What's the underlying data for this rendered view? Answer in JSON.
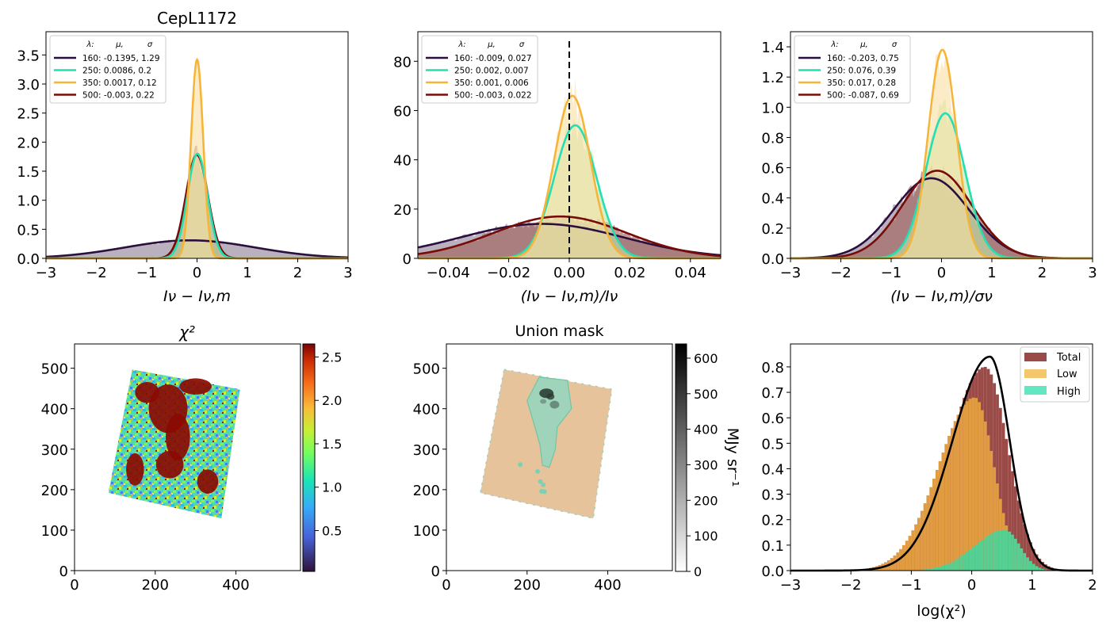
{
  "figure": {
    "width": 1400,
    "height": 800,
    "background": "#ffffff"
  },
  "colors": {
    "c160": "#2a0f3f",
    "c250": "#25dfb3",
    "c350": "#f6b53a",
    "c500": "#770b07",
    "fill160": "#8e7d93",
    "fill250": "#bfe7a6",
    "fill350": "#f8dfa2",
    "fill500": "#9e5a55",
    "total": "#9b4b47",
    "low": "#f5c76c",
    "high": "#63e6c2",
    "low_shown": "#e19b40",
    "high_shown": "#56cf93",
    "mask_fill": "#e6c39b",
    "mask_region": "#9fd4bb"
  },
  "legend_header": {
    "lambda": "λ:",
    "mu": "μ,",
    "sigma": "σ"
  },
  "chart_data": [
    {
      "id": "p1",
      "type": "line",
      "title": "CepL1172",
      "xlabel": "Iν − Iν,m",
      "xlim": [
        -3,
        3
      ],
      "ylim": [
        0,
        3.9
      ],
      "xticks": [
        -3,
        -2,
        -1,
        0,
        1,
        2,
        3
      ],
      "xtick_labels": [
        "−3",
        "−2",
        "−1",
        "0",
        "1",
        "2",
        "3"
      ],
      "yticks": [
        0,
        0.5,
        1,
        1.5,
        2,
        2.5,
        3,
        3.5
      ],
      "ytick_labels": [
        "0.0",
        "0.5",
        "1.0",
        "1.5",
        "2.0",
        "2.5",
        "3.0",
        "3.5"
      ],
      "legend_placement": "top-left",
      "series": [
        {
          "name": "160: -0.1395,  1.29",
          "mu": -0.1395,
          "sigma": 1.29,
          "amp": 0.31,
          "color_key": "c160",
          "fill_key": "fill160"
        },
        {
          "name": "250: 0.0086,  0.2",
          "mu": 0.0086,
          "sigma": 0.2,
          "amp": 1.8,
          "color_key": "c250",
          "fill_key": "fill250"
        },
        {
          "name": "350: 0.0017,  0.12",
          "mu": 0.0017,
          "sigma": 0.12,
          "amp": 3.42,
          "color_key": "c350",
          "fill_key": "fill350"
        },
        {
          "name": "500: -0.003,  0.22",
          "mu": -0.003,
          "sigma": 0.22,
          "amp": 1.78,
          "color_key": "c500",
          "fill_key": "fill500"
        }
      ]
    },
    {
      "id": "p2",
      "type": "line",
      "title": "",
      "xlabel": "(Iν − Iν,m)/Iν",
      "xlim": [
        -0.05,
        0.05
      ],
      "ylim": [
        0,
        92
      ],
      "xticks": [
        -0.04,
        -0.02,
        0,
        0.02,
        0.04
      ],
      "xtick_labels": [
        "−0.04",
        "−0.02",
        "0.00",
        "0.02",
        "0.04"
      ],
      "yticks": [
        0,
        20,
        40,
        60,
        80
      ],
      "ytick_labels": [
        "0",
        "20",
        "40",
        "60",
        "80"
      ],
      "vline_x": 0,
      "legend_placement": "top-left",
      "series": [
        {
          "name": "160: -0.009,  0.027",
          "mu": -0.009,
          "sigma": 0.027,
          "amp": 14,
          "color_key": "c160",
          "fill_key": "fill160"
        },
        {
          "name": "250: 0.002,  0.007",
          "mu": 0.002,
          "sigma": 0.007,
          "amp": 54,
          "color_key": "c250",
          "fill_key": "fill250"
        },
        {
          "name": "350: 0.001,  0.006",
          "mu": 0.001,
          "sigma": 0.006,
          "amp": 66,
          "color_key": "c350",
          "fill_key": "fill350"
        },
        {
          "name": "500: -0.003,  0.022",
          "mu": -0.003,
          "sigma": 0.022,
          "amp": 17,
          "color_key": "c500",
          "fill_key": "fill500"
        }
      ]
    },
    {
      "id": "p3",
      "type": "line",
      "title": "",
      "xlabel": "(Iν − Iν,m)/σν",
      "xlim": [
        -3,
        3
      ],
      "ylim": [
        0,
        1.5
      ],
      "xticks": [
        -3,
        -2,
        -1,
        0,
        1,
        2,
        3
      ],
      "xtick_labels": [
        "−3",
        "−2",
        "−1",
        "0",
        "1",
        "2",
        "3"
      ],
      "yticks": [
        0,
        0.2,
        0.4,
        0.6,
        0.8,
        1.0,
        1.2,
        1.4
      ],
      "ytick_labels": [
        "0.0",
        "0.2",
        "0.4",
        "0.6",
        "0.8",
        "1.0",
        "1.2",
        "1.4"
      ],
      "legend_placement": "top-left",
      "series": [
        {
          "name": "160: -0.203,  0.75",
          "mu": -0.203,
          "sigma": 0.75,
          "amp": 0.53,
          "color_key": "c160",
          "fill_key": "fill160"
        },
        {
          "name": "250: 0.076,  0.39",
          "mu": 0.076,
          "sigma": 0.39,
          "amp": 0.96,
          "color_key": "c250",
          "fill_key": "fill250"
        },
        {
          "name": "350: 0.017,  0.28",
          "mu": 0.017,
          "sigma": 0.28,
          "amp": 1.38,
          "color_key": "c350",
          "fill_key": "fill350"
        },
        {
          "name": "500: -0.087,  0.69",
          "mu": -0.087,
          "sigma": 0.69,
          "amp": 0.58,
          "color_key": "c500",
          "fill_key": "fill500"
        }
      ]
    },
    {
      "id": "p4",
      "type": "heatmap",
      "title": "χ²",
      "xlim": [
        0,
        560
      ],
      "ylim": [
        0,
        560
      ],
      "xticks": [
        0,
        200,
        400
      ],
      "xtick_labels": [
        "0",
        "200",
        "400"
      ],
      "yticks": [
        0,
        100,
        200,
        300,
        400,
        500
      ],
      "ytick_labels": [
        "0",
        "100",
        "200",
        "300",
        "400",
        "500"
      ],
      "region_corners": [
        [
          143,
          497
        ],
        [
          410,
          448
        ],
        [
          364,
          129
        ],
        [
          84,
          192
        ]
      ],
      "colorbar": {
        "cmap": "turbo",
        "range": [
          0.03,
          2.65
        ],
        "ticks": [
          0.5,
          1.0,
          1.5,
          2.0,
          2.5
        ],
        "tick_labels": [
          "0.5",
          "1.0",
          "1.5",
          "2.0",
          "2.5"
        ]
      }
    },
    {
      "id": "p5",
      "type": "heatmap",
      "title": "Union mask",
      "xlim": [
        0,
        560
      ],
      "ylim": [
        0,
        560
      ],
      "xticks": [
        0,
        200,
        400
      ],
      "xtick_labels": [
        "0",
        "200",
        "400"
      ],
      "yticks": [
        0,
        100,
        200,
        300,
        400,
        500
      ],
      "ytick_labels": [
        "0",
        "100",
        "200",
        "300",
        "400",
        "500"
      ],
      "region_corners": [
        [
          143,
          497
        ],
        [
          410,
          448
        ],
        [
          364,
          129
        ],
        [
          84,
          192
        ]
      ],
      "colorbar": {
        "cmap": "gray_r",
        "range": [
          0,
          640
        ],
        "ticks": [
          0,
          100,
          200,
          300,
          400,
          500,
          600
        ],
        "tick_labels": [
          "0",
          "100",
          "200",
          "300",
          "400",
          "500",
          "600"
        ],
        "label": "MJy sr⁻¹"
      }
    },
    {
      "id": "p6",
      "type": "bar",
      "title": "",
      "xlabel": "log(χ²)",
      "xlim": [
        -3,
        2
      ],
      "ylim": [
        0,
        0.89
      ],
      "xticks": [
        -3,
        -2,
        -1,
        0,
        1,
        2
      ],
      "xtick_labels": [
        "−3",
        "−2",
        "−1",
        "0",
        "1",
        "2"
      ],
      "yticks": [
        0,
        0.1,
        0.2,
        0.3,
        0.4,
        0.5,
        0.6,
        0.7,
        0.8
      ],
      "ytick_labels": [
        "0.0",
        "0.1",
        "0.2",
        "0.3",
        "0.4",
        "0.5",
        "0.6",
        "0.7",
        "0.8"
      ],
      "legend_placement": "top-right",
      "legend": [
        "Total",
        "Low",
        "High"
      ],
      "line_peak": {
        "x": 0.3,
        "y": 0.84
      }
    }
  ]
}
